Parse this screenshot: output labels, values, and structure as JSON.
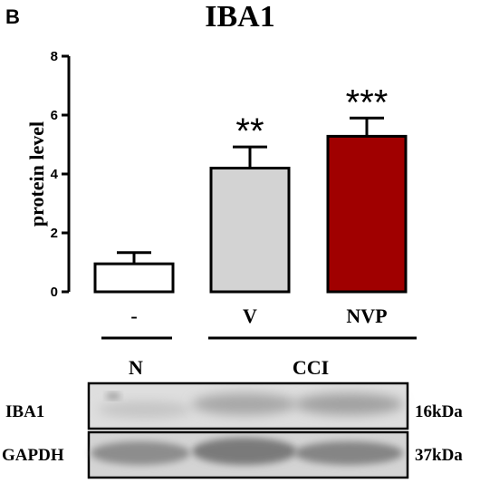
{
  "panel_letter": "B",
  "chart_data": {
    "type": "bar",
    "title": "IBA1",
    "ylabel": "protein level",
    "xlabel": "",
    "ylim": [
      0,
      8
    ],
    "yticks": [
      "0",
      "2",
      "4",
      "6",
      "8"
    ],
    "categories": [
      "-",
      "V",
      "NVP"
    ],
    "values": [
      0.95,
      4.2,
      5.28
    ],
    "errors": [
      0.38,
      0.72,
      0.62
    ],
    "significance": [
      "",
      "**",
      "***"
    ],
    "bar_colors": [
      "#ffffff",
      "#d3d3d3",
      "#a00000"
    ],
    "grid": false
  },
  "groups": [
    {
      "label": "N"
    },
    {
      "label": "CCI"
    }
  ],
  "blot": {
    "rows": [
      {
        "label": "IBA1",
        "size": "16kDa"
      },
      {
        "label": "GAPDH",
        "size": "37kDa"
      }
    ]
  }
}
